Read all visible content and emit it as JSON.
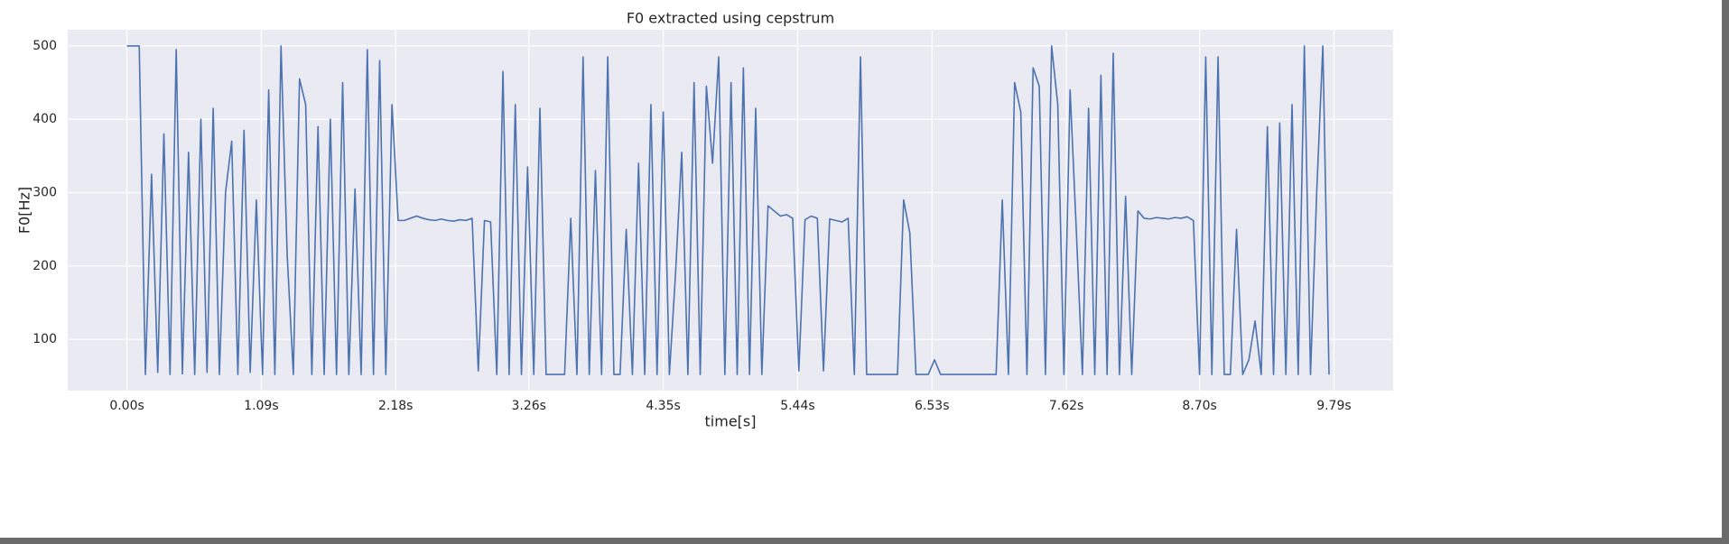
{
  "chart_data": {
    "type": "line",
    "title": "F0 extracted using cepstrum",
    "xlabel": "time[s]",
    "ylabel": "F0[Hz]",
    "xlim": [
      -0.48,
      10.27
    ],
    "ylim": [
      30,
      522
    ],
    "xticks": [
      {
        "value": 0,
        "label": "0.00s"
      },
      {
        "value": 1.09,
        "label": "1.09s"
      },
      {
        "value": 2.18,
        "label": "2.18s"
      },
      {
        "value": 3.26,
        "label": "3.26s"
      },
      {
        "value": 4.35,
        "label": "4.35s"
      },
      {
        "value": 5.44,
        "label": "5.44s"
      },
      {
        "value": 6.53,
        "label": "6.53s"
      },
      {
        "value": 7.62,
        "label": "7.62s"
      },
      {
        "value": 8.7,
        "label": "8.70s"
      },
      {
        "value": 9.79,
        "label": "9.79s"
      }
    ],
    "yticks": [
      100,
      200,
      300,
      400,
      500
    ],
    "grid": true,
    "series": [
      {
        "color": "#4c72b0",
        "x": [
          0,
          0.05,
          0.1,
          0.15,
          0.2,
          0.25,
          0.3,
          0.35,
          0.4,
          0.45,
          0.5,
          0.55,
          0.6,
          0.65,
          0.7,
          0.75,
          0.8,
          0.85,
          0.9,
          0.95,
          1,
          1.05,
          1.1,
          1.15,
          1.2,
          1.25,
          1.3,
          1.35,
          1.4,
          1.45,
          1.5,
          1.55,
          1.6,
          1.65,
          1.7,
          1.75,
          1.8,
          1.85,
          1.9,
          1.95,
          2,
          2.05,
          2.1,
          2.15,
          2.2,
          2.25,
          2.3,
          2.35,
          2.4,
          2.45,
          2.5,
          2.55,
          2.6,
          2.65,
          2.7,
          2.75,
          2.8,
          2.85,
          2.9,
          2.95,
          3,
          3.05,
          3.1,
          3.15,
          3.2,
          3.25,
          3.3,
          3.35,
          3.4,
          3.45,
          3.5,
          3.55,
          3.6,
          3.65,
          3.7,
          3.75,
          3.8,
          3.85,
          3.9,
          3.95,
          4,
          4.05,
          4.1,
          4.15,
          4.2,
          4.25,
          4.3,
          4.35,
          4.4,
          4.45,
          4.5,
          4.55,
          4.6,
          4.65,
          4.7,
          4.75,
          4.8,
          4.85,
          4.9,
          4.95,
          5,
          5.05,
          5.1,
          5.15,
          5.2,
          5.25,
          5.3,
          5.35,
          5.4,
          5.45,
          5.5,
          5.55,
          5.6,
          5.65,
          5.7,
          5.75,
          5.8,
          5.85,
          5.9,
          5.95,
          6,
          6.05,
          6.1,
          6.15,
          6.2,
          6.25,
          6.3,
          6.35,
          6.4,
          6.45,
          6.5,
          6.55,
          6.6,
          6.65,
          6.7,
          6.75,
          6.8,
          6.85,
          6.9,
          6.95,
          7,
          7.05,
          7.1,
          7.15,
          7.2,
          7.25,
          7.3,
          7.35,
          7.4,
          7.45,
          7.5,
          7.55,
          7.6,
          7.65,
          7.7,
          7.75,
          7.8,
          7.85,
          7.9,
          7.95,
          8,
          8.05,
          8.1,
          8.15,
          8.2,
          8.25,
          8.3,
          8.35,
          8.4,
          8.45,
          8.5,
          8.55,
          8.6,
          8.65,
          8.7,
          8.75,
          8.8,
          8.85,
          8.9,
          8.95,
          9,
          9.05,
          9.1,
          9.15,
          9.2,
          9.25,
          9.3,
          9.35,
          9.4,
          9.45,
          9.5,
          9.55,
          9.6,
          9.65,
          9.7,
          9.75
        ],
        "values": [
          500,
          500,
          500,
          52,
          325,
          55,
          380,
          52,
          495,
          53,
          355,
          52,
          400,
          55,
          415,
          52,
          300,
          370,
          52,
          385,
          55,
          290,
          52,
          440,
          52,
          500,
          215,
          52,
          455,
          420,
          52,
          390,
          52,
          400,
          52,
          450,
          52,
          305,
          52,
          495,
          52,
          480,
          52,
          420,
          262,
          262,
          265,
          268,
          265,
          263,
          262,
          264,
          262,
          261,
          263,
          262,
          265,
          57,
          262,
          260,
          52,
          465,
          52,
          420,
          52,
          335,
          52,
          415,
          52,
          52,
          52,
          52,
          265,
          52,
          485,
          52,
          330,
          52,
          485,
          52,
          52,
          250,
          52,
          340,
          52,
          420,
          52,
          410,
          52,
          190,
          355,
          52,
          450,
          52,
          445,
          340,
          485,
          52,
          450,
          52,
          470,
          52,
          415,
          52,
          282,
          275,
          268,
          270,
          265,
          57,
          263,
          268,
          265,
          57,
          264,
          262,
          260,
          265,
          52,
          485,
          52,
          52,
          52,
          52,
          52,
          52,
          290,
          245,
          52,
          52,
          52,
          72,
          52,
          52,
          52,
          52,
          52,
          52,
          52,
          52,
          52,
          52,
          290,
          52,
          450,
          410,
          52,
          470,
          445,
          52,
          500,
          420,
          52,
          440,
          250,
          52,
          415,
          52,
          460,
          52,
          490,
          52,
          295,
          52,
          275,
          265,
          264,
          266,
          265,
          264,
          266,
          265,
          267,
          262,
          52,
          485,
          52,
          485,
          52,
          52,
          250,
          52,
          72,
          125,
          52,
          390,
          52,
          395,
          52,
          420,
          52,
          500,
          52,
          300,
          500,
          52
        ]
      }
    ]
  }
}
